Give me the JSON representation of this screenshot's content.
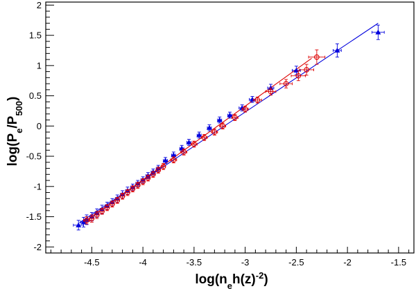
{
  "chart_data": {
    "type": "scatter",
    "xlabel": {
      "main": "log(n",
      "sub1": "e",
      "mid": "h(z)",
      "sup": "-2",
      "end": ")"
    },
    "ylabel": {
      "main": "log(P",
      "sub1": "e",
      "mid": "/P",
      "sub2": "500",
      "end": ")"
    },
    "xlim": [
      -4.95,
      -1.35
    ],
    "ylim": [
      -2.1,
      2.05
    ],
    "xticks": [
      -4.5,
      -4,
      -3.5,
      -3,
      -2.5,
      -2,
      -1.5
    ],
    "xtick_labels": [
      "-4.5",
      "-4",
      "-3.5",
      "-3",
      "-2.5",
      "-2",
      "-1.5"
    ],
    "yticks": [
      -2,
      -1.5,
      -1,
      -0.5,
      0,
      0.5,
      1,
      1.5,
      2
    ],
    "ytick_labels": [
      "-2",
      "-1.5",
      "-1",
      "-0.5",
      "0",
      "0.5",
      "1",
      "1.5",
      "2"
    ],
    "grid": false,
    "series": [
      {
        "marker": "triangle",
        "color": "#0000dd",
        "fit": {
          "x": [
            -4.62,
            -1.7
          ],
          "y": [
            -1.6,
            1.7
          ]
        },
        "points": [
          {
            "x": -4.63,
            "y": -1.64,
            "ex": 0.05,
            "ey": 0.08
          },
          {
            "x": -4.58,
            "y": -1.59,
            "ex": 0.03,
            "ey": 0.08
          },
          {
            "x": -4.55,
            "y": -1.55,
            "ex": 0.02,
            "ey": 0.08
          },
          {
            "x": -4.5,
            "y": -1.5,
            "ex": 0.02,
            "ey": 0.07
          },
          {
            "x": -4.45,
            "y": -1.44,
            "ex": 0.02,
            "ey": 0.07
          },
          {
            "x": -4.4,
            "y": -1.38,
            "ex": 0.02,
            "ey": 0.07
          },
          {
            "x": -4.35,
            "y": -1.32,
            "ex": 0.02,
            "ey": 0.06
          },
          {
            "x": -4.3,
            "y": -1.26,
            "ex": 0.02,
            "ey": 0.06
          },
          {
            "x": -4.25,
            "y": -1.2,
            "ex": 0.02,
            "ey": 0.06
          },
          {
            "x": -4.2,
            "y": -1.13,
            "ex": 0.02,
            "ey": 0.06
          },
          {
            "x": -4.15,
            "y": -1.07,
            "ex": 0.02,
            "ey": 0.06
          },
          {
            "x": -4.1,
            "y": -1.01,
            "ex": 0.02,
            "ey": 0.05
          },
          {
            "x": -4.05,
            "y": -0.95,
            "ex": 0.02,
            "ey": 0.05
          },
          {
            "x": -4.0,
            "y": -0.89,
            "ex": 0.02,
            "ey": 0.05
          },
          {
            "x": -3.95,
            "y": -0.82,
            "ex": 0.02,
            "ey": 0.05
          },
          {
            "x": -3.9,
            "y": -0.76,
            "ex": 0.02,
            "ey": 0.05
          },
          {
            "x": -3.85,
            "y": -0.7,
            "ex": 0.02,
            "ey": 0.05
          },
          {
            "x": -3.78,
            "y": -0.57,
            "ex": 0.02,
            "ey": 0.05
          },
          {
            "x": -3.7,
            "y": -0.48,
            "ex": 0.02,
            "ey": 0.05
          },
          {
            "x": -3.62,
            "y": -0.37,
            "ex": 0.02,
            "ey": 0.05
          },
          {
            "x": -3.55,
            "y": -0.27,
            "ex": 0.02,
            "ey": 0.05
          },
          {
            "x": -3.45,
            "y": -0.15,
            "ex": 0.02,
            "ey": 0.05
          },
          {
            "x": -3.35,
            "y": -0.03,
            "ex": 0.02,
            "ey": 0.05
          },
          {
            "x": -3.25,
            "y": 0.1,
            "ex": 0.02,
            "ey": 0.05
          },
          {
            "x": -3.15,
            "y": 0.18,
            "ex": 0.02,
            "ey": 0.05
          },
          {
            "x": -3.03,
            "y": 0.3,
            "ex": 0.03,
            "ey": 0.05
          },
          {
            "x": -2.93,
            "y": 0.44,
            "ex": 0.03,
            "ey": 0.05
          },
          {
            "x": -2.75,
            "y": 0.63,
            "ex": 0.03,
            "ey": 0.06
          },
          {
            "x": -2.5,
            "y": 0.92,
            "ex": 0.04,
            "ey": 0.07
          },
          {
            "x": -2.1,
            "y": 1.25,
            "ex": 0.04,
            "ey": 0.11
          },
          {
            "x": -1.7,
            "y": 1.55,
            "ex": 0.06,
            "ey": 0.12
          }
        ]
      },
      {
        "marker": "circle",
        "color": "#dd0000",
        "fit": {
          "x": [
            -4.6,
            -2.35
          ],
          "y": [
            -1.62,
            1.12
          ]
        },
        "points": [
          {
            "x": -4.55,
            "y": -1.56,
            "ex": 0.03,
            "ey": 0.06
          },
          {
            "x": -4.5,
            "y": -1.53,
            "ex": 0.02,
            "ey": 0.06
          },
          {
            "x": -4.45,
            "y": -1.47,
            "ex": 0.02,
            "ey": 0.06
          },
          {
            "x": -4.4,
            "y": -1.41,
            "ex": 0.02,
            "ey": 0.05
          },
          {
            "x": -4.35,
            "y": -1.35,
            "ex": 0.02,
            "ey": 0.05
          },
          {
            "x": -4.3,
            "y": -1.29,
            "ex": 0.02,
            "ey": 0.05
          },
          {
            "x": -4.25,
            "y": -1.23,
            "ex": 0.02,
            "ey": 0.05
          },
          {
            "x": -4.2,
            "y": -1.16,
            "ex": 0.02,
            "ey": 0.05
          },
          {
            "x": -4.15,
            "y": -1.1,
            "ex": 0.02,
            "ey": 0.05
          },
          {
            "x": -4.1,
            "y": -1.04,
            "ex": 0.02,
            "ey": 0.05
          },
          {
            "x": -4.05,
            "y": -0.98,
            "ex": 0.02,
            "ey": 0.05
          },
          {
            "x": -4.0,
            "y": -0.92,
            "ex": 0.02,
            "ey": 0.05
          },
          {
            "x": -3.95,
            "y": -0.86,
            "ex": 0.02,
            "ey": 0.05
          },
          {
            "x": -3.9,
            "y": -0.8,
            "ex": 0.02,
            "ey": 0.05
          },
          {
            "x": -3.85,
            "y": -0.73,
            "ex": 0.02,
            "ey": 0.05
          },
          {
            "x": -3.8,
            "y": -0.67,
            "ex": 0.02,
            "ey": 0.05
          },
          {
            "x": -3.7,
            "y": -0.56,
            "ex": 0.03,
            "ey": 0.05
          },
          {
            "x": -3.6,
            "y": -0.43,
            "ex": 0.03,
            "ey": 0.05
          },
          {
            "x": -3.5,
            "y": -0.3,
            "ex": 0.03,
            "ey": 0.05
          },
          {
            "x": -3.4,
            "y": -0.19,
            "ex": 0.03,
            "ey": 0.05
          },
          {
            "x": -3.3,
            "y": -0.1,
            "ex": 0.03,
            "ey": 0.05
          },
          {
            "x": -3.22,
            "y": 0.0,
            "ex": 0.03,
            "ey": 0.05
          },
          {
            "x": -3.1,
            "y": 0.14,
            "ex": 0.03,
            "ey": 0.05
          },
          {
            "x": -3.0,
            "y": 0.28,
            "ex": 0.03,
            "ey": 0.05
          },
          {
            "x": -2.88,
            "y": 0.43,
            "ex": 0.04,
            "ey": 0.05
          },
          {
            "x": -2.75,
            "y": 0.57,
            "ex": 0.05,
            "ey": 0.06
          },
          {
            "x": -2.6,
            "y": 0.7,
            "ex": 0.06,
            "ey": 0.07
          },
          {
            "x": -2.48,
            "y": 0.83,
            "ex": 0.07,
            "ey": 0.08
          },
          {
            "x": -2.4,
            "y": 0.93,
            "ex": 0.07,
            "ey": 0.09
          },
          {
            "x": -2.3,
            "y": 1.14,
            "ex": 0.08,
            "ey": 0.12
          }
        ]
      }
    ]
  }
}
